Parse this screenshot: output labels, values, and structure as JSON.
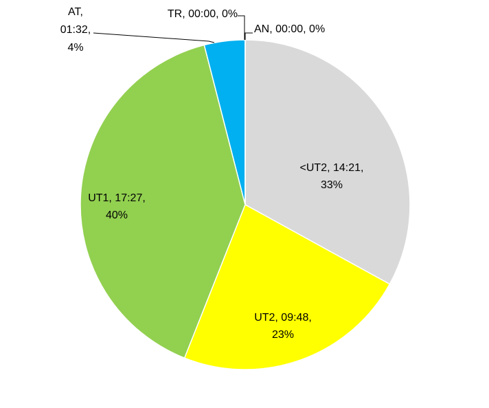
{
  "chart_data": {
    "type": "pie",
    "categories": [
      "<UT2",
      "UT2",
      "UT1",
      "AT",
      "TR",
      "AN"
    ],
    "values": [
      33,
      23,
      40,
      4,
      0,
      0
    ],
    "colors": [
      "#d9d9d9",
      "#ffff00",
      "#92d050",
      "#00b0f0",
      "#ffc000",
      "#5b9bd5"
    ],
    "data_labels": [
      [
        "<UT2, 14:21,",
        "33%"
      ],
      [
        "UT2, 09:48,",
        "23%"
      ],
      [
        "UT1, 17:27,",
        "40%"
      ],
      [
        "AT,",
        "01:32,",
        "4%"
      ],
      [
        "TR, 00:00, 0%"
      ],
      [
        "AN, 00:00, 0%"
      ]
    ]
  }
}
